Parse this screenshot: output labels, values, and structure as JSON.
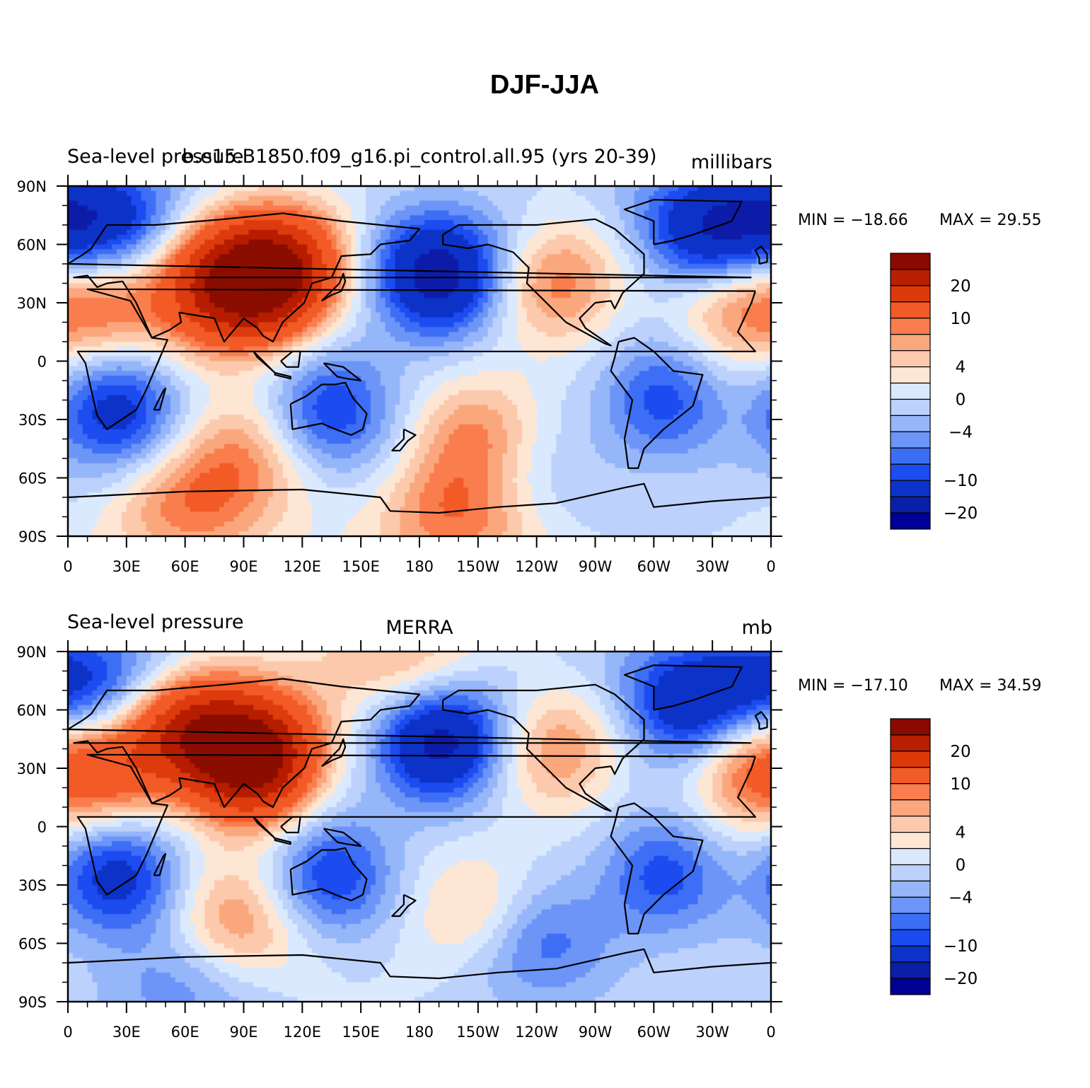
{
  "figure": {
    "title": "DJF-JJA"
  },
  "panels": [
    {
      "left_label": "Sea-level pressure",
      "center_label": "b.e15.B1850.f09_g16.pi_control.all.95 (yrs 20-39)",
      "right_label": "millibars",
      "min_label": "MIN = −18.66",
      "max_label": "MAX =   29.55",
      "map_fields": [
        {
          "lon": 105,
          "lat": 45,
          "value": 28
        },
        {
          "lon": 75,
          "lat": 35,
          "value": 16
        },
        {
          "lon": 20,
          "lat": 30,
          "value": 10
        },
        {
          "lon": 250,
          "lat": 40,
          "value": 9
        },
        {
          "lon": 340,
          "lat": 30,
          "value": 9
        },
        {
          "lon": 90,
          "lat": -50,
          "value": 8
        },
        {
          "lon": 210,
          "lat": -40,
          "value": 9
        },
        {
          "lon": 200,
          "lat": -80,
          "value": 10
        },
        {
          "lon": 60,
          "lat": -75,
          "value": 8
        },
        {
          "lon": 190,
          "lat": 45,
          "value": -18
        },
        {
          "lon": 330,
          "lat": 65,
          "value": -16
        },
        {
          "lon": 20,
          "lat": 68,
          "value": -14
        },
        {
          "lon": 25,
          "lat": -25,
          "value": -12
        },
        {
          "lon": 135,
          "lat": -25,
          "value": -10
        },
        {
          "lon": 305,
          "lat": -20,
          "value": -9
        },
        {
          "lon": 230,
          "lat": -60,
          "value": -4
        }
      ]
    },
    {
      "left_label": "Sea-level pressure",
      "center_label": "MERRA",
      "right_label": "mb",
      "min_label": "MIN = −17.10",
      "max_label": "MAX =   34.59",
      "map_fields": [
        {
          "lon": 95,
          "lat": 35,
          "value": 30
        },
        {
          "lon": 60,
          "lat": 50,
          "value": 16
        },
        {
          "lon": 20,
          "lat": 30,
          "value": 12
        },
        {
          "lon": 170,
          "lat": 80,
          "value": 8
        },
        {
          "lon": 250,
          "lat": 40,
          "value": 8
        },
        {
          "lon": 345,
          "lat": 30,
          "value": 9
        },
        {
          "lon": 85,
          "lat": -50,
          "value": 9
        },
        {
          "lon": 210,
          "lat": -45,
          "value": 6
        },
        {
          "lon": 190,
          "lat": 45,
          "value": -18
        },
        {
          "lon": 320,
          "lat": 62,
          "value": -15
        },
        {
          "lon": 15,
          "lat": 70,
          "value": -12
        },
        {
          "lon": 25,
          "lat": -25,
          "value": -12
        },
        {
          "lon": 135,
          "lat": -25,
          "value": -10
        },
        {
          "lon": 305,
          "lat": -25,
          "value": -9
        },
        {
          "lon": 240,
          "lat": -60,
          "value": -8
        },
        {
          "lon": 60,
          "lat": -80,
          "value": -6
        }
      ]
    }
  ],
  "lon_ticks": [
    "0",
    "30E",
    "60E",
    "90E",
    "120E",
    "150E",
    "180",
    "150W",
    "120W",
    "90W",
    "60W",
    "30W",
    "0"
  ],
  "lat_ticks": [
    "90N",
    "60N",
    "30N",
    "0",
    "30S",
    "60S",
    "90S"
  ],
  "colorbar": {
    "levels": [
      -25,
      -20,
      -15,
      -10,
      -8,
      -6,
      -4,
      -2,
      0,
      2,
      4,
      6,
      8,
      10,
      15,
      20,
      25
    ],
    "colors": [
      "#000096",
      "#0a1fa8",
      "#0b33c8",
      "#1a4cf0",
      "#3c6ef5",
      "#6c95f7",
      "#96b6fa",
      "#bcd2fc",
      "#dbe9fe",
      "#fde6d3",
      "#fcc9ac",
      "#fba77d",
      "#f97d4e",
      "#f25a27",
      "#dd3a0a",
      "#b61f00",
      "#8a0a00"
    ],
    "labels": [
      {
        "text": "20",
        "level": 20
      },
      {
        "text": "10",
        "level": 10
      },
      {
        "text": "4",
        "level": 4
      },
      {
        "text": "0",
        "level": 0
      },
      {
        "text": "−4",
        "level": -4
      },
      {
        "text": "−10",
        "level": -10
      },
      {
        "text": "−20",
        "level": -20
      }
    ]
  }
}
